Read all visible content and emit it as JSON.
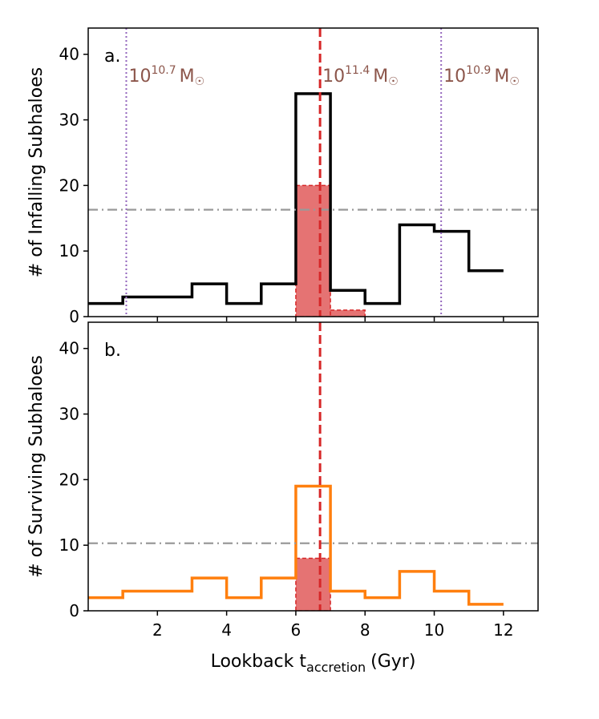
{
  "chart_data": {
    "type": "histogram",
    "colors": {
      "total_a": "#000000",
      "total_b": "#ff7f0e",
      "subset_fill": "#e57373",
      "subset_edge": "#d62728",
      "accretion_line": "#d62728",
      "mass_line": "#9467bd",
      "mean_line": "#999999",
      "mass_text": "#8c564b"
    },
    "xlabel_main": "Lookback t",
    "xlabel_sub": "accretion",
    "xlabel_unit": "(Gyr)",
    "xlim": [
      0,
      13
    ],
    "xticks": [
      2,
      4,
      6,
      8,
      10,
      12
    ],
    "bin_edges": [
      0,
      1,
      2,
      3,
      4,
      5,
      6,
      7,
      8,
      9,
      10,
      11,
      12
    ],
    "panels": [
      {
        "label": "a.",
        "ylabel": "# of Infalling Subhaloes",
        "ylim": [
          0,
          44
        ],
        "yticks": [
          0,
          10,
          20,
          30,
          40
        ],
        "counts": [
          2,
          3,
          3,
          5,
          2,
          5,
          34,
          4,
          2,
          14,
          13,
          7
        ],
        "subset_bins": [
          {
            "x0": 6,
            "x1": 7,
            "count": 20
          },
          {
            "x0": 7,
            "x1": 8,
            "count": 1
          }
        ],
        "mean_line": 16.3,
        "accretion_line": 6.7,
        "mass_lines": [
          1.1,
          10.2
        ],
        "mass_annotations": [
          {
            "x": 1.1,
            "base": "10",
            "exp": "10.7",
            "unit": "M",
            "sun": "☉"
          },
          {
            "x": 6.7,
            "base": "10",
            "exp": "11.4",
            "unit": "M",
            "sun": "☉"
          },
          {
            "x": 10.2,
            "base": "10",
            "exp": "10.9",
            "unit": "M",
            "sun": "☉"
          }
        ]
      },
      {
        "label": "b.",
        "ylabel": "# of Surviving Subhaloes",
        "ylim": [
          0,
          44
        ],
        "yticks": [
          0,
          10,
          20,
          30,
          40
        ],
        "counts": [
          2,
          3,
          3,
          5,
          2,
          5,
          19,
          3,
          2,
          6,
          3,
          1
        ],
        "subset_bins": [
          {
            "x0": 6,
            "x1": 7,
            "count": 8
          }
        ],
        "mean_line": 10.3,
        "accretion_line": 6.7,
        "mass_lines": [],
        "mass_annotations": []
      }
    ]
  }
}
